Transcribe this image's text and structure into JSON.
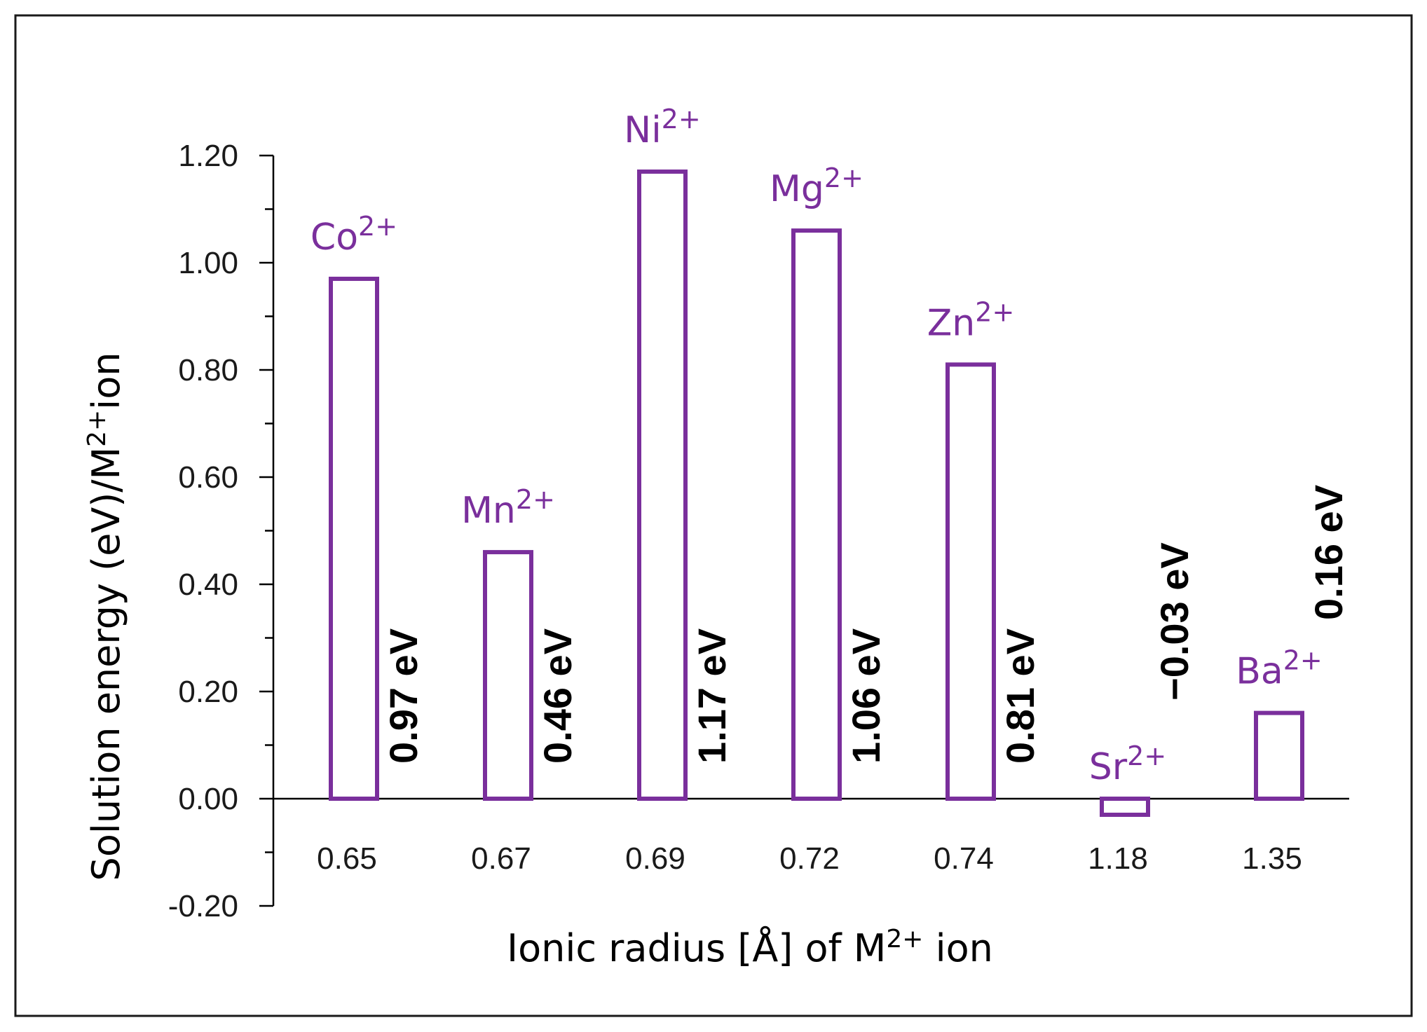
{
  "chart_data": {
    "type": "bar",
    "xlabel": "Ionic radius [Å] of M",
    "xlabel_sup": "2+",
    "xlabel_suffix": " ion",
    "ylabel": "Solution energy (eV)/M",
    "ylabel_sup": "2+",
    "ylabel_suffix": "ion",
    "ylim": [
      -0.2,
      1.2
    ],
    "yticks": [
      "1.20",
      "1.00",
      "0.80",
      "0.60",
      "0.40",
      "0.20",
      "0.00",
      "-0.20"
    ],
    "ytick_values": [
      1.2,
      1.0,
      0.8,
      0.6,
      0.4,
      0.2,
      0.0,
      -0.2
    ],
    "categories": [
      "0.65",
      "0.67",
      "0.69",
      "0.72",
      "0.74",
      "1.18",
      "1.35"
    ],
    "values": [
      0.97,
      0.46,
      1.17,
      1.06,
      0.81,
      -0.03,
      0.16
    ],
    "ions": [
      {
        "base": "Co",
        "sup": "2+"
      },
      {
        "base": "Mn",
        "sup": "2+"
      },
      {
        "base": "Ni",
        "sup": "2+"
      },
      {
        "base": "Mg",
        "sup": "2+"
      },
      {
        "base": "Zn",
        "sup": "2+"
      },
      {
        "base": "Sr",
        "sup": "2+"
      },
      {
        "base": "Ba",
        "sup": "2+"
      }
    ],
    "value_labels": [
      "0.97 eV",
      "0.46 eV",
      "1.17 eV",
      "1.06 eV",
      "0.81 eV",
      "−0.03 eV",
      "0.16 eV"
    ],
    "grid": false,
    "bar_color": "#7a2f9c"
  }
}
